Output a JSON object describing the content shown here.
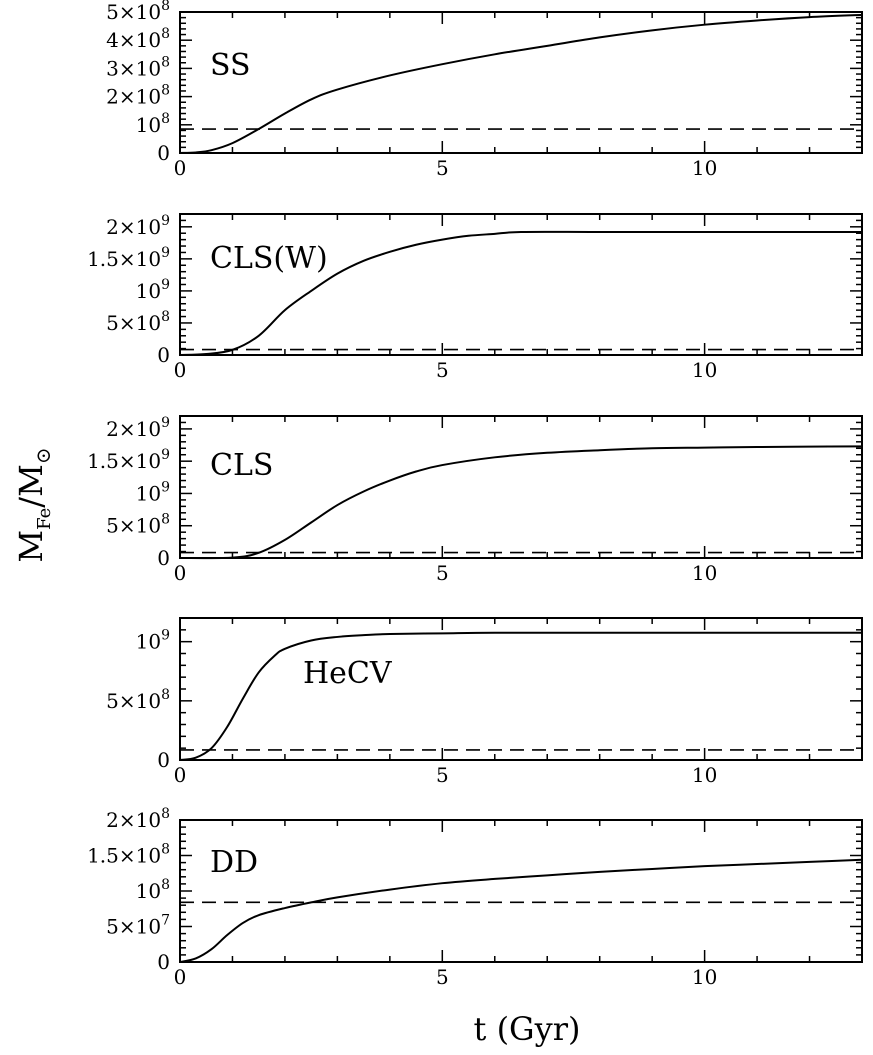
{
  "figure": {
    "xlabel": "t (Gyr)",
    "ylabel": "M_Fe/M_⊙",
    "xticks": [
      "0",
      "5",
      "10"
    ]
  },
  "chart_data": [
    {
      "type": "line",
      "label": "SS",
      "xlim": [
        0,
        13
      ],
      "ylim": [
        0,
        500000000
      ],
      "ytick_values": [
        0,
        100000000,
        200000000,
        300000000,
        400000000,
        500000000
      ],
      "ytick_labels": [
        [
          "0",
          ""
        ],
        [
          "10",
          "8"
        ],
        [
          "2×10",
          "8"
        ],
        [
          "3×10",
          "8"
        ],
        [
          "4×10",
          "8"
        ],
        [
          "5×10",
          "8"
        ]
      ],
      "threshold": 85000000,
      "series": [
        {
          "x": [
            0,
            0.3,
            0.6,
            1,
            1.5,
            2,
            2.5,
            3,
            4,
            5,
            6,
            7,
            8,
            9,
            10,
            11,
            12,
            13
          ],
          "y": [
            0,
            2000000,
            10000000,
            35000000,
            85000000,
            140000000,
            190000000,
            225000000,
            275000000,
            315000000,
            350000000,
            380000000,
            410000000,
            435000000,
            455000000,
            470000000,
            482000000,
            490000000
          ]
        }
      ]
    },
    {
      "type": "line",
      "label": "CLS(W)",
      "xlim": [
        0,
        13
      ],
      "ylim": [
        0,
        2200000000
      ],
      "ytick_values": [
        0,
        500000000,
        1000000000,
        1500000000,
        2000000000
      ],
      "ytick_labels": [
        [
          "0",
          ""
        ],
        [
          "5×10",
          "8"
        ],
        [
          "10",
          "9"
        ],
        [
          "1.5×10",
          "9"
        ],
        [
          "2×10",
          "9"
        ]
      ],
      "threshold": 85000000,
      "series": [
        {
          "x": [
            0,
            0.5,
            1,
            1.5,
            2,
            2.5,
            3,
            3.5,
            4,
            4.5,
            5,
            5.5,
            6,
            6.5,
            8,
            10,
            13
          ],
          "y": [
            0,
            15000000,
            80000000,
            300000000,
            700000000,
            1000000000,
            1270000000,
            1470000000,
            1610000000,
            1720000000,
            1800000000,
            1860000000,
            1890000000,
            1920000000,
            1920000000,
            1920000000,
            1920000000
          ]
        }
      ]
    },
    {
      "type": "line",
      "label": "CLS",
      "xlim": [
        0,
        13
      ],
      "ylim": [
        0,
        2200000000
      ],
      "ytick_values": [
        0,
        500000000,
        1000000000,
        1500000000,
        2000000000
      ],
      "ytick_labels": [
        [
          "0",
          ""
        ],
        [
          "5×10",
          "8"
        ],
        [
          "10",
          "9"
        ],
        [
          "1.5×10",
          "9"
        ],
        [
          "2×10",
          "9"
        ]
      ],
      "threshold": 85000000,
      "series": [
        {
          "x": [
            0,
            1,
            1.5,
            2,
            2.5,
            3,
            3.5,
            4,
            4.5,
            5,
            6,
            7,
            8,
            9,
            10,
            11,
            12,
            13
          ],
          "y": [
            0,
            5000000,
            80000000,
            280000000,
            550000000,
            820000000,
            1030000000,
            1200000000,
            1340000000,
            1440000000,
            1560000000,
            1630000000,
            1670000000,
            1700000000,
            1710000000,
            1720000000,
            1725000000,
            1730000000
          ]
        }
      ]
    },
    {
      "type": "line",
      "label": "HeCV",
      "xlim": [
        0,
        13
      ],
      "ylim": [
        0,
        1200000000
      ],
      "ytick_values": [
        0,
        500000000,
        1000000000
      ],
      "ytick_labels": [
        [
          "0",
          ""
        ],
        [
          "5×10",
          "8"
        ],
        [
          "10",
          "9"
        ]
      ],
      "threshold": 85000000,
      "series": [
        {
          "x": [
            0,
            0.3,
            0.6,
            0.9,
            1.2,
            1.5,
            1.8,
            2,
            2.5,
            3,
            3.5,
            4,
            5,
            6,
            8,
            10,
            13
          ],
          "y": [
            0,
            20000000,
            100000000,
            280000000,
            520000000,
            740000000,
            880000000,
            940000000,
            1010000000,
            1040000000,
            1055000000,
            1065000000,
            1070000000,
            1075000000,
            1075000000,
            1075000000,
            1075000000
          ]
        }
      ]
    },
    {
      "type": "line",
      "label": "DD",
      "xlim": [
        0,
        13
      ],
      "ylim": [
        0,
        200000000
      ],
      "ytick_values": [
        0,
        50000000,
        100000000,
        150000000,
        200000000
      ],
      "ytick_labels": [
        [
          "0",
          ""
        ],
        [
          "5×10",
          "7"
        ],
        [
          "10",
          "8"
        ],
        [
          "1.5×10",
          "8"
        ],
        [
          "2×10",
          "8"
        ]
      ],
      "threshold": 84000000,
      "series": [
        {
          "x": [
            0,
            0.3,
            0.6,
            0.9,
            1.2,
            1.5,
            2,
            2.5,
            3,
            4,
            5,
            6,
            7,
            8,
            9,
            10,
            11,
            12,
            13
          ],
          "y": [
            0,
            5000000,
            18000000,
            38000000,
            55000000,
            66000000,
            76000000,
            84000000,
            91000000,
            102000000,
            111000000,
            117000000,
            122000000,
            127000000,
            131000000,
            135000000,
            138000000,
            141000000,
            144000000
          ]
        }
      ]
    }
  ]
}
